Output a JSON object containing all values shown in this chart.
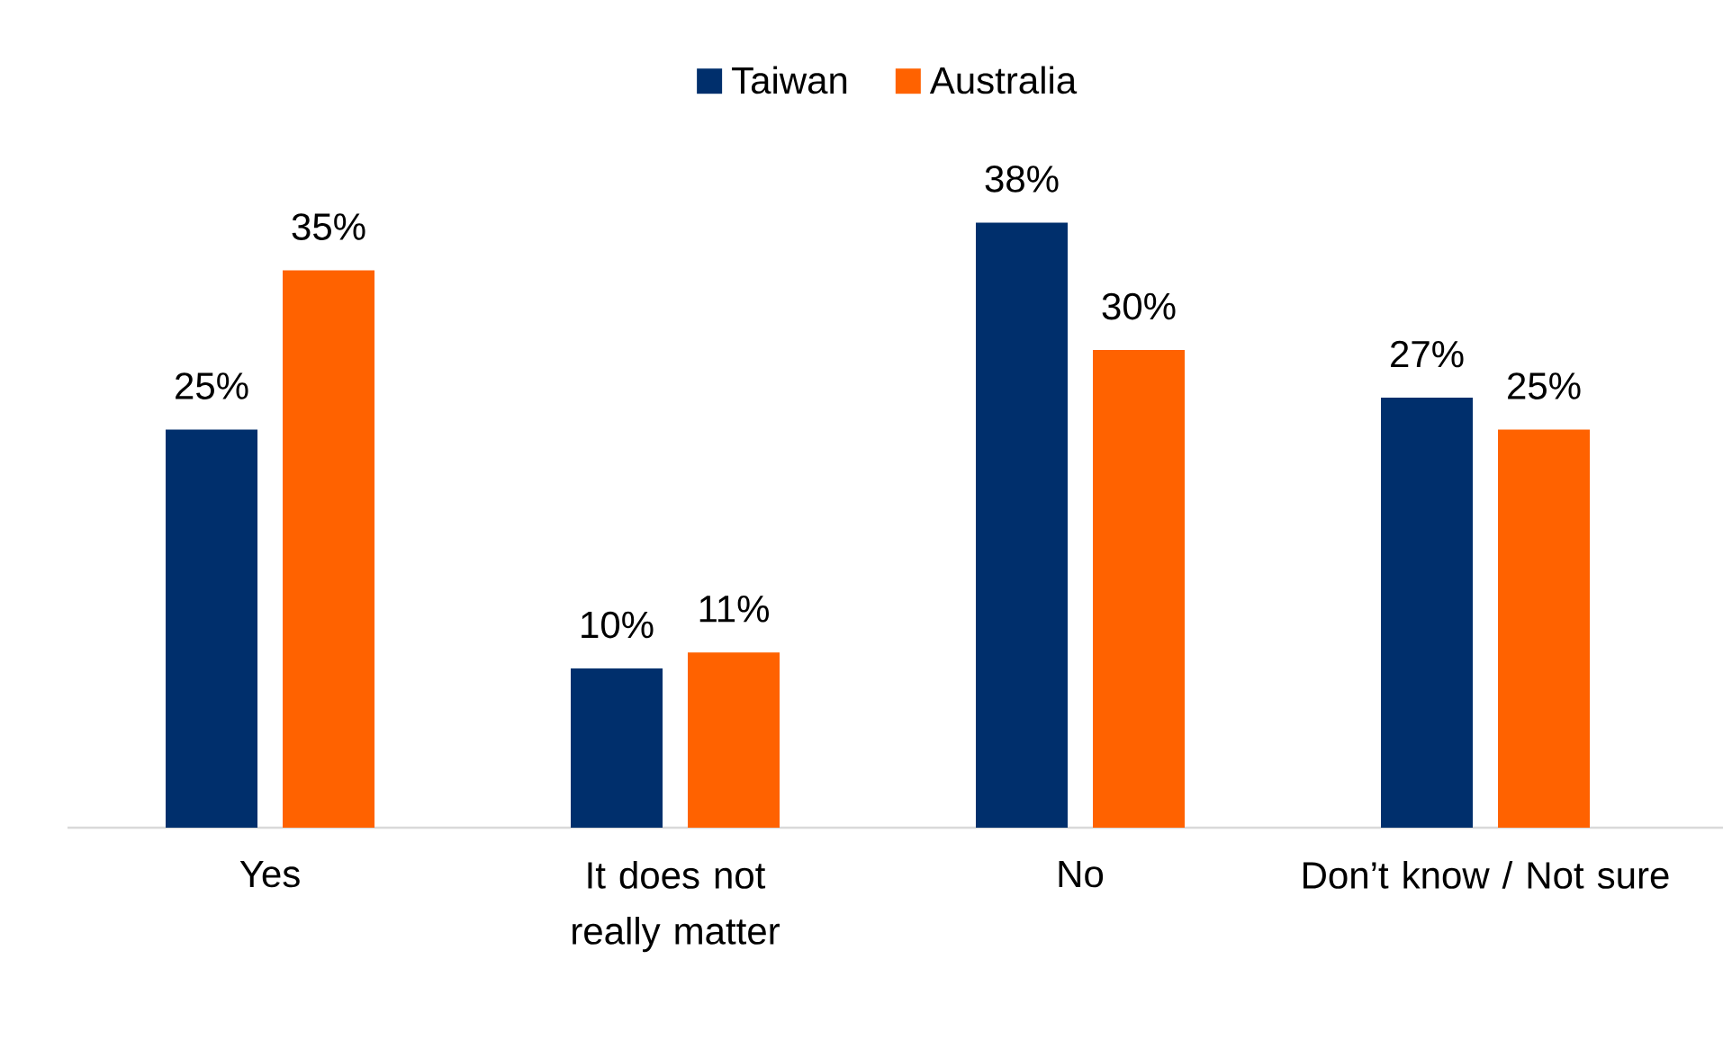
{
  "chart_data": {
    "type": "bar",
    "categories": [
      "Yes",
      "It does not really matter",
      "No",
      "Don’t know / Not sure"
    ],
    "series": [
      {
        "name": "Taiwan",
        "color": "#002f6c",
        "values": [
          25,
          10,
          38,
          27
        ],
        "value_labels": [
          "25%",
          "10%",
          "38%",
          "27%"
        ]
      },
      {
        "name": "Australia",
        "color": "#ff6200",
        "values": [
          35,
          11,
          30,
          25
        ],
        "value_labels": [
          "35%",
          "11%",
          "30%",
          "25%"
        ]
      }
    ],
    "legend": "top",
    "tick_labels": "x"
  }
}
